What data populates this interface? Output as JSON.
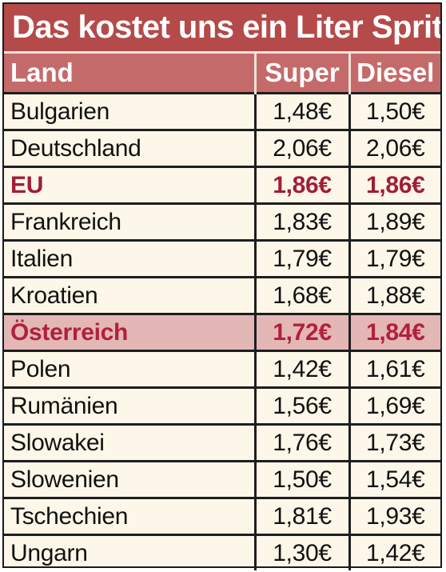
{
  "title": "Das kostet uns ein Liter Sprit",
  "headers": {
    "country": "Land",
    "super": "Super",
    "diesel": "Diesel"
  },
  "rows": [
    {
      "country": "Bulgarien",
      "super": "1,48€",
      "diesel": "1,50€"
    },
    {
      "country": "Deutschland",
      "super": "2,06€",
      "diesel": "2,06€"
    },
    {
      "country": "EU",
      "super": "1,86€",
      "diesel": "1,86€"
    },
    {
      "country": "Frankreich",
      "super": "1,83€",
      "diesel": "1,89€"
    },
    {
      "country": "Italien",
      "super": "1,79€",
      "diesel": "1,79€"
    },
    {
      "country": "Kroatien",
      "super": "1,68€",
      "diesel": "1,88€"
    },
    {
      "country": "Österreich",
      "super": "1,72€",
      "diesel": "1,84€"
    },
    {
      "country": "Polen",
      "super": "1,42€",
      "diesel": "1,61€"
    },
    {
      "country": "Rumänien",
      "super": "1,56€",
      "diesel": "1,69€"
    },
    {
      "country": "Slowakei",
      "super": "1,76€",
      "diesel": "1,73€"
    },
    {
      "country": "Slowenien",
      "super": "1,50€",
      "diesel": "1,54€"
    },
    {
      "country": "Tschechien",
      "super": "1,81€",
      "diesel": "1,93€"
    },
    {
      "country": "Ungarn",
      "super": "1,30€",
      "diesel": "1,42€"
    }
  ],
  "colors": {
    "title_bg": "#b44a4a",
    "header_bg": "#c56a6a",
    "row_bg": "#fdf7e9",
    "eu_text": "#a11d38",
    "highlight_bg": "#e4b7b7",
    "highlight_text": "#b0203c"
  }
}
